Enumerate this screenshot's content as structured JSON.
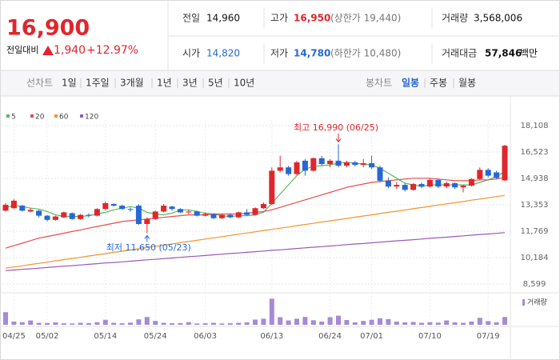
{
  "quote": {
    "price": "16,900",
    "change_label": "전일대비",
    "change": "1,940",
    "rate": "+12.97%",
    "rows": [
      [
        {
          "label": "전일",
          "value": "14,960"
        },
        {
          "label": "고가",
          "value": "16,950",
          "note": "(상한가 19,440)"
        },
        {
          "label": "거래량",
          "value": "3,568,006"
        }
      ],
      [
        {
          "label": "시가",
          "value": "14,820"
        },
        {
          "label": "저가",
          "value": "14,780",
          "note": "(하한가 10,480)"
        },
        {
          "label": "거래대금",
          "value": "57,846",
          "unit": "백만"
        }
      ]
    ]
  },
  "toolbar": {
    "line_label": "선차트",
    "line_periods": [
      "1일",
      "1주일",
      "3개월",
      "1년",
      "3년",
      "5년",
      "10년"
    ],
    "candle_label": "봉차트",
    "candle_periods": [
      "일봉",
      "주봉",
      "월봉"
    ]
  },
  "chart_data": {
    "type": "candlestick",
    "up_color": "#e0262d",
    "down_color": "#2468d6",
    "ylim": [
      8599,
      18108
    ],
    "yticks": [
      {
        "value": 18108,
        "label": "18,108"
      },
      {
        "value": 16523,
        "label": "16,523"
      },
      {
        "value": 14938,
        "label": "14,938"
      },
      {
        "value": 13353,
        "label": "13,353"
      },
      {
        "value": 11769,
        "label": "11,769"
      },
      {
        "value": 10184,
        "label": "10,184"
      },
      {
        "value": 8599,
        "label": "8,599"
      }
    ],
    "grid": true,
    "categories": [
      null,
      "04/25",
      null,
      null,
      null,
      "05/02",
      null,
      null,
      null,
      null,
      null,
      null,
      "05/14",
      null,
      null,
      null,
      null,
      null,
      "05/24",
      null,
      null,
      null,
      null,
      null,
      "06/03",
      null,
      null,
      null,
      null,
      null,
      null,
      null,
      "06/13",
      null,
      null,
      null,
      null,
      null,
      null,
      "06/24",
      null,
      null,
      null,
      null,
      "07/01",
      null,
      null,
      null,
      null,
      null,
      null,
      "07/10",
      null,
      null,
      null,
      null,
      null,
      null,
      "07/19",
      null,
      null
    ],
    "ohlc": [
      [
        13000,
        13450,
        12950,
        13350
      ],
      [
        13150,
        13700,
        13100,
        13600
      ],
      [
        13300,
        13350,
        12950,
        13000
      ],
      [
        12950,
        13150,
        12900,
        13050
      ],
      [
        13000,
        13050,
        12600,
        12700
      ],
      [
        12700,
        12750,
        12350,
        12450
      ],
      [
        12450,
        12700,
        12400,
        12650
      ],
      [
        12600,
        12950,
        12550,
        12900
      ],
      [
        12850,
        12900,
        12450,
        12500
      ],
      [
        12500,
        12800,
        12450,
        12750
      ],
      [
        12750,
        12850,
        12600,
        12700
      ],
      [
        12700,
        13150,
        12650,
        13100
      ],
      [
        13100,
        13550,
        13050,
        13450
      ],
      [
        13400,
        13450,
        13250,
        13300
      ],
      [
        13300,
        13350,
        13050,
        13100
      ],
      [
        13100,
        13200,
        12950,
        13050
      ],
      [
        13300,
        13400,
        12150,
        12200
      ],
      [
        12200,
        12600,
        11650,
        12500
      ],
      [
        12500,
        13000,
        12450,
        12950
      ],
      [
        12950,
        13400,
        12900,
        13300
      ],
      [
        13250,
        13300,
        13000,
        13100
      ],
      [
        13100,
        13150,
        12850,
        12900
      ],
      [
        12900,
        13050,
        12800,
        12950
      ],
      [
        12950,
        13000,
        12650,
        12700
      ],
      [
        12700,
        12900,
        12650,
        12800
      ],
      [
        12800,
        12850,
        12500,
        12550
      ],
      [
        12550,
        12800,
        12500,
        12750
      ],
      [
        12750,
        12850,
        12550,
        12600
      ],
      [
        12600,
        12950,
        12550,
        12900
      ],
      [
        12900,
        13100,
        12700,
        12750
      ],
      [
        12750,
        13200,
        12700,
        13150
      ],
      [
        13150,
        13500,
        13100,
        13400
      ],
      [
        13400,
        15600,
        13350,
        15400
      ],
      [
        15400,
        16300,
        15300,
        15600
      ],
      [
        15600,
        15700,
        15100,
        15200
      ],
      [
        15200,
        16000,
        15150,
        15900
      ],
      [
        16000,
        16100,
        15100,
        15400
      ],
      [
        15400,
        16200,
        15350,
        16150
      ],
      [
        16150,
        16300,
        15700,
        15800
      ],
      [
        15800,
        16100,
        15600,
        16000
      ],
      [
        16000,
        16990,
        15600,
        15700
      ],
      [
        15700,
        16000,
        15600,
        15900
      ],
      [
        15900,
        16000,
        15650,
        15750
      ],
      [
        15750,
        16100,
        15600,
        15850
      ],
      [
        15850,
        16300,
        15500,
        15600
      ],
      [
        15600,
        15700,
        14700,
        14800
      ],
      [
        14800,
        15000,
        14350,
        14450
      ],
      [
        14450,
        14700,
        14300,
        14550
      ],
      [
        14550,
        14650,
        14150,
        14250
      ],
      [
        14250,
        14650,
        14200,
        14600
      ],
      [
        14600,
        14700,
        14350,
        14450
      ],
      [
        14450,
        14950,
        14400,
        14850
      ],
      [
        14850,
        14900,
        14350,
        14450
      ],
      [
        14450,
        14750,
        14350,
        14650
      ],
      [
        14650,
        14700,
        14300,
        14400
      ],
      [
        14400,
        14550,
        14100,
        14500
      ],
      [
        14500,
        14950,
        14450,
        14900
      ],
      [
        14900,
        15600,
        14850,
        15450
      ],
      [
        15450,
        15550,
        15000,
        15100
      ],
      [
        15300,
        15400,
        14900,
        14960
      ],
      [
        14820,
        16950,
        14780,
        16900
      ]
    ],
    "series": [
      {
        "name": "5",
        "color": "#5cb85c",
        "values": [
          13200,
          13300,
          13250,
          13150,
          13100,
          12950,
          12750,
          12650,
          12650,
          12650,
          12700,
          12800,
          12900,
          13050,
          13150,
          13250,
          13150,
          12900,
          12800,
          12750,
          12850,
          13050,
          13050,
          12950,
          12850,
          12800,
          12700,
          12650,
          12700,
          12700,
          12750,
          12900,
          13450,
          14000,
          14550,
          15100,
          15500,
          15650,
          15700,
          15750,
          15850,
          15900,
          15850,
          15800,
          15750,
          15550,
          15250,
          14950,
          14650,
          14550,
          14450,
          14550,
          14550,
          14550,
          14550,
          14550,
          14550,
          14700,
          14850,
          15050,
          15350
        ]
      },
      {
        "name": "20",
        "color": "#e84d4d",
        "values": [
          10750,
          10900,
          11050,
          11200,
          11350,
          11450,
          11550,
          11650,
          11750,
          11850,
          11950,
          12050,
          12150,
          12250,
          12350,
          12400,
          12450,
          12500,
          12550,
          12600,
          12650,
          12700,
          12750,
          12750,
          12750,
          12800,
          12800,
          12800,
          12800,
          12850,
          12900,
          12950,
          13050,
          13200,
          13350,
          13500,
          13650,
          13800,
          13950,
          14100,
          14250,
          14400,
          14500,
          14600,
          14700,
          14750,
          14800,
          14850,
          14900,
          14950,
          14950,
          14950,
          14900,
          14850,
          14800,
          14800,
          14800,
          14850,
          14850,
          14900,
          15000
        ]
      },
      {
        "name": "60",
        "color": "#f0952b",
        "values": [
          9550,
          9620,
          9690,
          9770,
          9840,
          9910,
          9990,
          10060,
          10130,
          10200,
          10280,
          10350,
          10420,
          10500,
          10570,
          10640,
          10710,
          10790,
          10860,
          10930,
          11000,
          11080,
          11150,
          11220,
          11300,
          11370,
          11440,
          11510,
          11590,
          11660,
          11730,
          11810,
          11880,
          11950,
          12020,
          12100,
          12170,
          12240,
          12320,
          12390,
          12460,
          12530,
          12610,
          12680,
          12750,
          12830,
          12900,
          12970,
          13040,
          13120,
          13190,
          13260,
          13340,
          13410,
          13480,
          13550,
          13630,
          13700,
          13770,
          13850,
          13920
        ]
      },
      {
        "name": "120",
        "color": "#9b59b6",
        "values": [
          9400,
          9440,
          9480,
          9510,
          9550,
          9590,
          9630,
          9670,
          9700,
          9740,
          9780,
          9820,
          9860,
          9890,
          9930,
          9970,
          10010,
          10050,
          10080,
          10120,
          10160,
          10200,
          10240,
          10270,
          10310,
          10350,
          10390,
          10430,
          10460,
          10500,
          10540,
          10580,
          10620,
          10650,
          10690,
          10730,
          10770,
          10810,
          10840,
          10880,
          10920,
          10960,
          11000,
          11030,
          11070,
          11110,
          11150,
          11190,
          11220,
          11260,
          11300,
          11340,
          11380,
          11410,
          11450,
          11490,
          11530,
          11570,
          11600,
          11640,
          11680
        ]
      }
    ],
    "volume_name": "거래량",
    "volume_color": "#a68ad6",
    "volume_lim": [
      0,
      12500000
    ],
    "volume": [
      5800000,
      1500000,
      1200000,
      2000000,
      900000,
      800000,
      1100000,
      700000,
      600000,
      900000,
      800000,
      1200000,
      2300000,
      900000,
      700000,
      1000000,
      2500000,
      3600000,
      1800000,
      900000,
      700000,
      800000,
      1200000,
      600000,
      700000,
      900000,
      600000,
      700000,
      900000,
      1100000,
      2400000,
      2800000,
      12000000,
      3500000,
      2000000,
      2800000,
      3600000,
      2100000,
      1500000,
      3500000,
      4200000,
      2200000,
      1100000,
      1800000,
      2300000,
      3000000,
      2600000,
      1500000,
      1100000,
      1300000,
      900000,
      1200000,
      1000000,
      2000000,
      1100000,
      900000,
      1500000,
      3200000,
      1700000,
      1200000,
      3568006
    ],
    "annotations": [
      {
        "text": "최고 16,990 (06/25)"
      },
      {
        "text": "최저 11,650 (05/23)"
      }
    ]
  }
}
